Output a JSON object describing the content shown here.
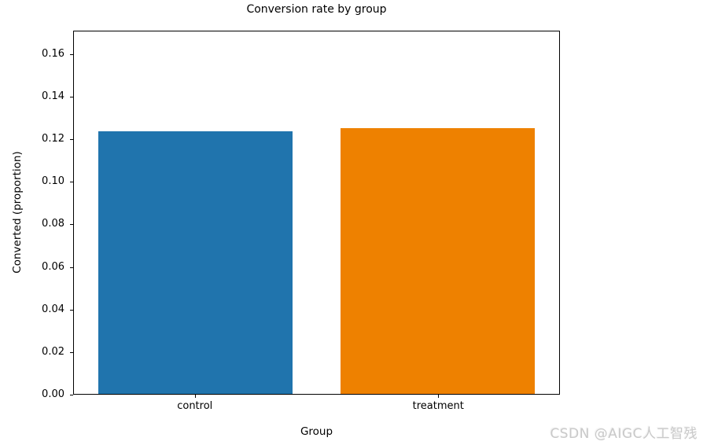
{
  "watermark": "CSDN @AIGC人工智残",
  "chart_data": {
    "type": "bar",
    "title": "Conversion rate by group",
    "categories": [
      "control",
      "treatment"
    ],
    "values": [
      0.1238,
      0.1253
    ],
    "colors": [
      "#2074ad",
      "#ee8100"
    ],
    "xlabel": "Group",
    "ylabel": "Converted (proportion)",
    "ylim": [
      0,
      0.171
    ],
    "yticks": [
      0.0,
      0.02,
      0.04,
      0.06,
      0.08,
      0.1,
      0.12,
      0.14,
      0.16
    ],
    "ytick_format_decimals": 2,
    "bar_width_fraction": 0.8,
    "grid": false,
    "legend": "none",
    "background": "#ffffff",
    "spine_color": "#000000"
  }
}
